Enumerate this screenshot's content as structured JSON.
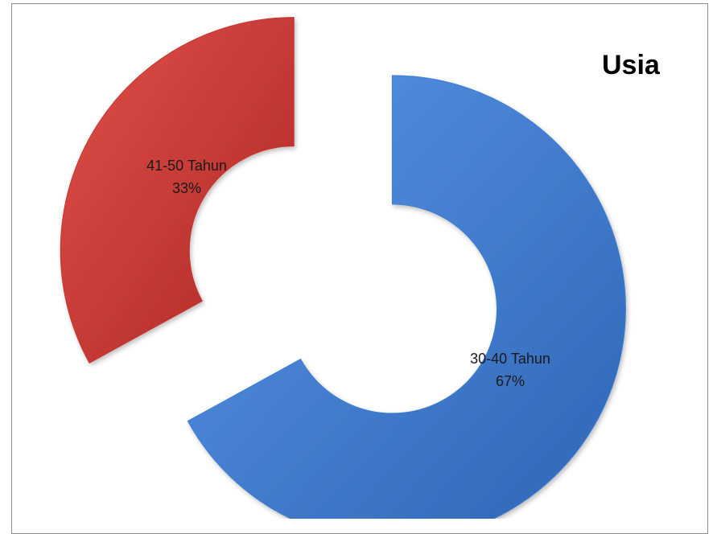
{
  "chart_data": {
    "type": "pie",
    "variant": "doughnut-exploded",
    "title": "Usia",
    "legend": "none",
    "categories": [
      "30-40 Tahun",
      "41-50 Tahun"
    ],
    "values": [
      67,
      33
    ],
    "value_labels": [
      "67%",
      "33%"
    ],
    "colors": [
      "#3f7fd4",
      "#c9332f"
    ],
    "start_angle_deg": 0,
    "direction": "clockwise"
  }
}
